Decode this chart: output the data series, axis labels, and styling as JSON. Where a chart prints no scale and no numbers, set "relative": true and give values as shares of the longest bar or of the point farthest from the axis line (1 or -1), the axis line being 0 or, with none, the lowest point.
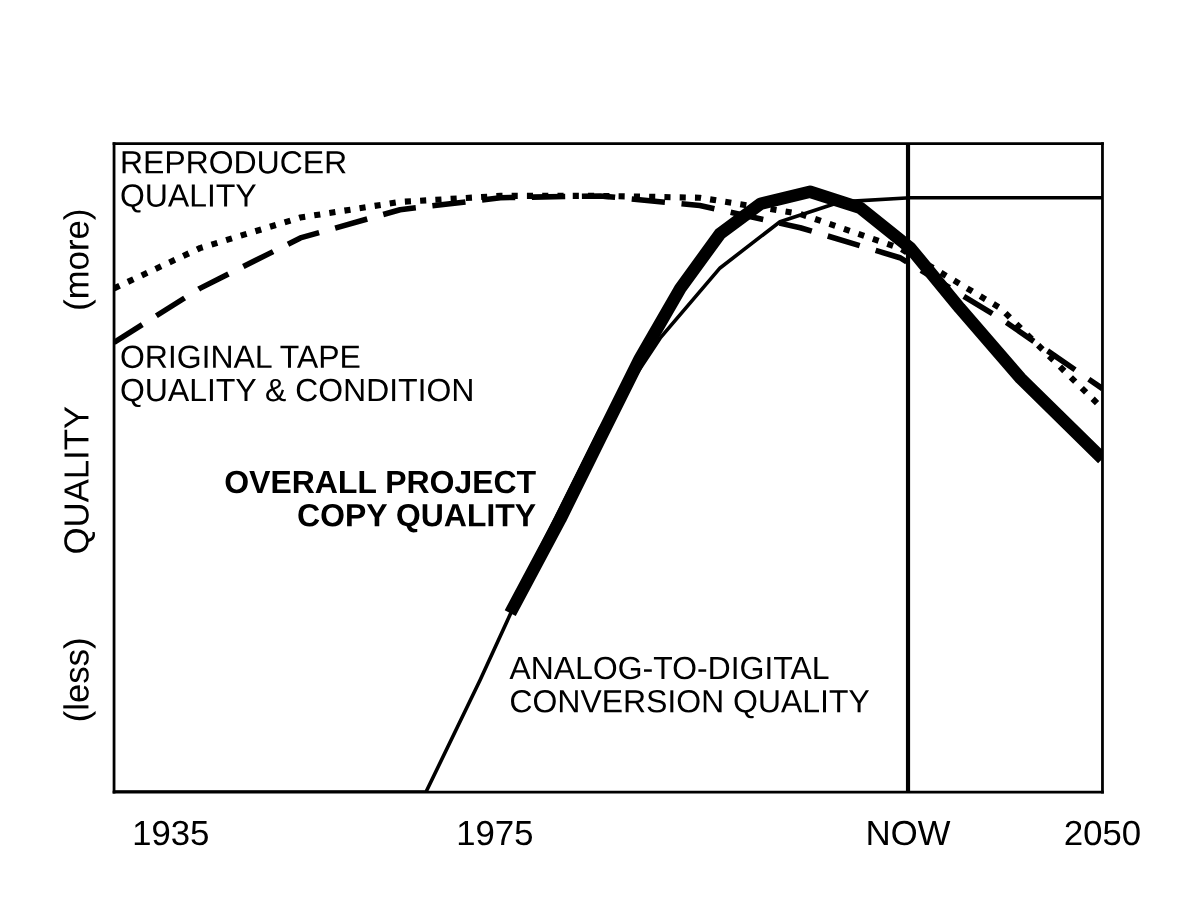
{
  "chart_data": {
    "type": "line",
    "relative": true,
    "ylabel": "QUALITY",
    "annotations": [
      "(less)",
      "(more)"
    ],
    "xlim": [
      1928,
      2050
    ],
    "xticks": [
      1935,
      1975,
      {
        "value": 2026,
        "label": "NOW"
      },
      2050
    ],
    "ref_lines": [
      {
        "axis": "x",
        "value": 2026,
        "label": null,
        "color": "#000000"
      }
    ],
    "grid": false,
    "legend": false,
    "marker": "none",
    "series": [
      {
        "name": "REPRODUCER\nQUALITY",
        "color": "#000000",
        "line_style": "dotted",
        "x": [
          1928,
          1938.6,
          1951,
          1963.3,
          1975.7,
          1988,
          2000.3,
          2012.7,
          2025,
          2037.4,
          2050
        ],
        "values": [
          0.839,
          0.906,
          0.957,
          0.983,
          0.993,
          0.993,
          0.99,
          0.963,
          0.906,
          0.806,
          0.639
        ]
      },
      {
        "name": "ORIGINAL TAPE\nQUALITY & CONDITION",
        "color": "#000000",
        "line_style": "dashed",
        "x": [
          1928,
          1938.6,
          1951,
          1963.3,
          1975.7,
          1988,
          2000.3,
          2012.7,
          2025,
          2037.4,
          2050
        ],
        "values": [
          0.749,
          0.839,
          0.923,
          0.97,
          0.99,
          0.993,
          0.977,
          0.94,
          0.89,
          0.789,
          0.672
        ]
      },
      {
        "name": "OVERALL PROJECT\nCOPY QUALITY",
        "color": "#000000",
        "line_style": "solid",
        "x": [
          1976.9,
          1983.1,
          1988,
          1992.9,
          1997.9,
          2002.8,
          2007.8,
          2013.9,
          2020.1,
          2026.3,
          2032.4,
          2039.9,
          2050
        ],
        "values": [
          0.298,
          0.455,
          0.589,
          0.722,
          0.839,
          0.93,
          0.98,
          1,
          0.973,
          0.906,
          0.806,
          0.689,
          0.555
        ]
      },
      {
        "name": "ANALOG-TO-DIGITAL\nCONVERSION QUALITY",
        "color": "#000000",
        "line_style": "solid",
        "x": [
          1928,
          1966.5,
          1973.2,
          1980.6,
          1988,
          1995.4,
          2002.8,
          2010.2,
          2017.6,
          2026.3,
          2050
        ],
        "values": [
          0,
          0,
          0.187,
          0.405,
          0.605,
          0.756,
          0.873,
          0.95,
          0.983,
          0.99,
          0.99
        ]
      }
    ]
  }
}
